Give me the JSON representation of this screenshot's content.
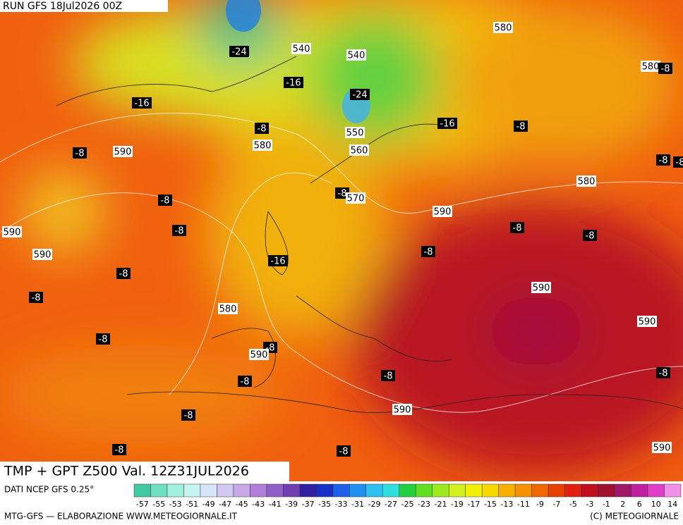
{
  "header": {
    "run": "RUN GFS 18Jul2026 00Z"
  },
  "map": {
    "contour_labels": [
      "-24",
      "540",
      "540",
      "580",
      "580",
      "-8",
      "-16",
      "-24",
      "-16",
      "-16",
      "-8",
      "-8",
      "550",
      "580",
      "560",
      "-8",
      "590",
      "-8",
      "-8",
      "580",
      "-8",
      "570",
      "-8",
      "590",
      "-8",
      "590",
      "-8",
      "-8",
      "590",
      "-8",
      "-16",
      "-8",
      "590",
      "-8",
      "580",
      "590",
      "-8",
      "-8",
      "590",
      "-8",
      "-8",
      "-8",
      "590",
      "-8",
      "-8",
      "-8",
      "590"
    ]
  },
  "footer": {
    "title": "TMP + GPT Z500 Val. 12Z31JUL2026",
    "source": "DATI NCEP GFS 0.25°",
    "credit": "MTG-GFS — ELABORAZIONE WWW.METEOGIORNALE.IT",
    "copyright": "(C) METEOGIORNALE"
  },
  "legend": {
    "labels": [
      "-57",
      "-55",
      "-53",
      "-51",
      "-49",
      "-47",
      "-45",
      "-43",
      "-41",
      "-39",
      "-37",
      "-35",
      "-33",
      "-31",
      "-29",
      "-27",
      "-25",
      "-23",
      "-21",
      "-19",
      "-17",
      "-15",
      "-13",
      "-11",
      "-9",
      "-7",
      "-5",
      "-3",
      "-1",
      "2",
      "6",
      "10",
      "14"
    ],
    "colors": [
      "#40c8a0",
      "#70e0c0",
      "#a0f0e0",
      "#c8f4f4",
      "#d8e4f8",
      "#d0c8f0",
      "#c8a8e8",
      "#b080d8",
      "#9060c8",
      "#7040b0",
      "#3020a0",
      "#1830c8",
      "#2060e8",
      "#2090f0",
      "#30c0f0",
      "#30e0e0",
      "#20d040",
      "#60e020",
      "#a0e820",
      "#d0f020",
      "#f0f000",
      "#f8d800",
      "#f8b000",
      "#f89000",
      "#f06800",
      "#e84000",
      "#e02010",
      "#c01020",
      "#a01030",
      "#a01868",
      "#c020a0",
      "#e040c8",
      "#f090e8"
    ]
  }
}
